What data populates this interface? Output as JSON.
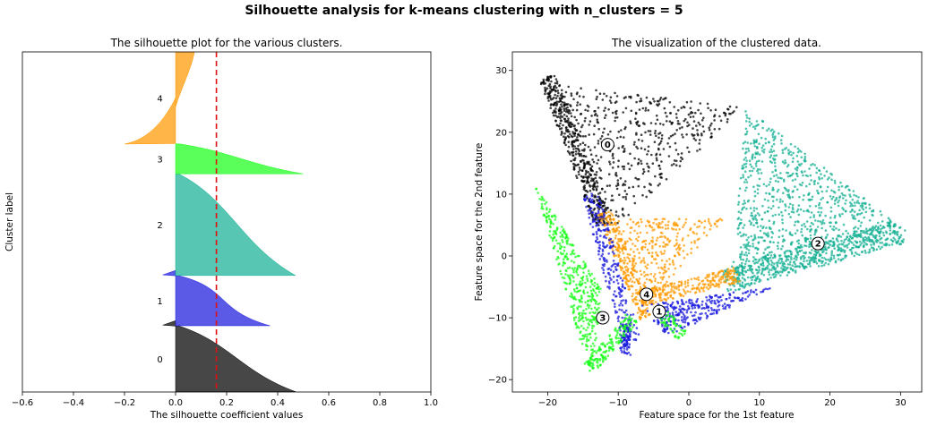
{
  "suptitle": "Silhouette analysis for k-means clustering with n_clusters = 5",
  "chart_data": [
    {
      "type": "area",
      "title": "The silhouette plot for the various clusters.",
      "xlabel": "The silhouette coefficient values",
      "ylabel": "Cluster label",
      "xlim": [
        -0.6,
        1.0
      ],
      "xticks": [
        "−0.6",
        "−0.4",
        "−0.2",
        "0.0",
        "0.2",
        "0.4",
        "0.6",
        "0.8",
        "1.0"
      ],
      "yticks": [],
      "grid": false,
      "average_silhouette_score": 0.16,
      "clusters": [
        {
          "label": "0",
          "color": "#000000",
          "size": 2300,
          "max_value": 0.47,
          "min_value": -0.05
        },
        {
          "label": "1",
          "color": "#1a1add",
          "size": 1750,
          "max_value": 0.37,
          "min_value": -0.05
        },
        {
          "label": "2",
          "color": "#16b094",
          "size": 3550,
          "max_value": 0.47,
          "min_value": 0.0
        },
        {
          "label": "3",
          "color": "#1aff1a",
          "size": 1050,
          "max_value": 0.5,
          "min_value": 0.0
        },
        {
          "label": "4",
          "color": "#ff9900",
          "size": 3200,
          "max_value": 0.06,
          "min_value": -0.2
        }
      ]
    },
    {
      "type": "scatter",
      "title": "The visualization of the clustered data.",
      "xlabel": "Feature space for the 1st feature",
      "ylabel": "Feature space for the 2nd feature",
      "xlim": [
        -25,
        33
      ],
      "ylim": [
        -22,
        33
      ],
      "xticks": [
        -20,
        -10,
        0,
        10,
        20,
        30
      ],
      "yticks": [
        -20,
        -10,
        0,
        10,
        20,
        30
      ],
      "grid": false,
      "centers": [
        {
          "label": "0",
          "x": -11.5,
          "y": 18
        },
        {
          "label": "1",
          "x": -4.2,
          "y": -9
        },
        {
          "label": "2",
          "x": 18.3,
          "y": 2
        },
        {
          "label": "3",
          "x": -12.2,
          "y": -10
        },
        {
          "label": "4",
          "x": -6,
          "y": -6.2
        }
      ]
    }
  ]
}
